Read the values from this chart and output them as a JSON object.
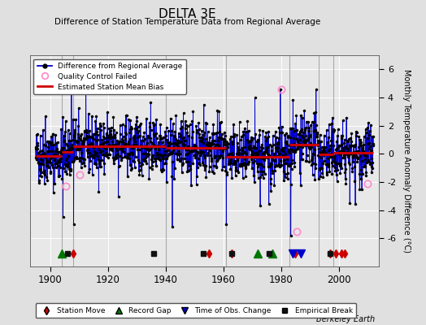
{
  "title": "DELTA 3E",
  "subtitle": "Difference of Station Temperature Data from Regional Average",
  "ylabel": "Monthly Temperature Anomaly Difference (°C)",
  "xlabel_years": [
    1900,
    1920,
    1940,
    1960,
    1980,
    2000
  ],
  "xlim": [
    1893,
    2014
  ],
  "ylim": [
    -8,
    7
  ],
  "yticks": [
    -6,
    -4,
    -2,
    0,
    2,
    4,
    6
  ],
  "seed": 42,
  "start_year": 1895,
  "end_year": 2012,
  "bias_segments": [
    {
      "start": 1895,
      "end": 1904,
      "bias": -0.15
    },
    {
      "start": 1904,
      "end": 1908,
      "bias": 0.15
    },
    {
      "start": 1908,
      "end": 1940,
      "bias": 0.55
    },
    {
      "start": 1940,
      "end": 1961,
      "bias": 0.45
    },
    {
      "start": 1961,
      "end": 1983,
      "bias": -0.2
    },
    {
      "start": 1983,
      "end": 1993,
      "bias": 0.65
    },
    {
      "start": 1993,
      "end": 1998,
      "bias": -0.05
    },
    {
      "start": 1998,
      "end": 2012,
      "bias": 0.05
    }
  ],
  "vertical_lines": [
    1904,
    1908,
    1940,
    1961,
    1983,
    1993,
    1998
  ],
  "station_moves": [
    1908,
    1955,
    1963,
    1985,
    1997,
    1999,
    2001,
    2002
  ],
  "record_gaps": [
    1904,
    1972,
    1977
  ],
  "time_obs_changes": [
    1984,
    1987
  ],
  "empirical_breaks": [
    1906,
    1936,
    1953,
    1963,
    1976,
    1997
  ],
  "qc_failed": [
    {
      "year": 1905.5,
      "val": -2.3
    },
    {
      "year": 1910.2,
      "val": -1.5
    },
    {
      "year": 1980.0,
      "val": 4.6
    },
    {
      "year": 1985.5,
      "val": -5.5
    },
    {
      "year": 2010.0,
      "val": -2.1
    }
  ],
  "line_color": "#0000cc",
  "bias_color": "#cc0000",
  "qc_color": "#ff88cc",
  "station_move_color": "#cc0000",
  "record_gap_color": "#007700",
  "time_obs_color": "#0000cc",
  "empirical_break_color": "#111111",
  "marker_color": "#000000",
  "bg_color": "#e0e0e0",
  "plot_bg_color": "#e8e8e8",
  "grid_color": "#ffffff",
  "vline_color": "#aaaaaa",
  "marker_y": -7.1
}
